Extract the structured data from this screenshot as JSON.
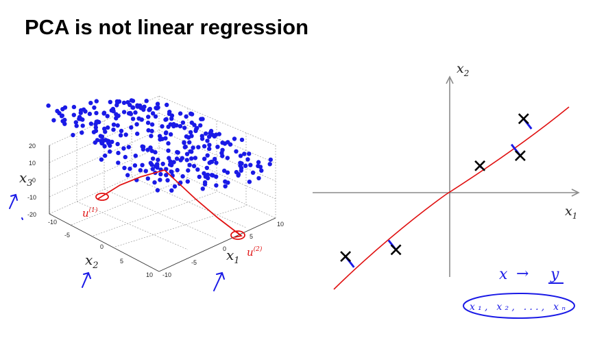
{
  "slide": {
    "title": "PCA is not linear regression"
  },
  "plot3d": {
    "z_ticks": [
      "20",
      "10",
      "0",
      "-10",
      "-20"
    ],
    "x2_ticks": [
      "-10",
      "-5",
      "0",
      "5",
      "10"
    ],
    "x1_ticks": [
      "-10",
      "-5",
      "0",
      "5",
      "10"
    ],
    "x3_label": "x",
    "x3_sub": "3",
    "x2_label": "x",
    "x2_sub": "2",
    "x1_label": "x",
    "x1_sub": "1",
    "point_color": "#1a1ae6",
    "u1_annotation": "u",
    "u1_sup": "(1)",
    "u2_annotation": "u",
    "u2_sup": "(2)"
  },
  "plot2d": {
    "x1_label": "x",
    "x1_sub": "1",
    "x2_label": "x",
    "x2_sub": "2",
    "line_color": "#e01010",
    "projection_color": "#1a1ae6",
    "points": [
      {
        "x": -3.1,
        "y": -1.9
      },
      {
        "x": -1.6,
        "y": -1.7
      },
      {
        "x": 0.9,
        "y": 0.8
      },
      {
        "x": 2.1,
        "y": 1.1
      },
      {
        "x": 2.2,
        "y": 2.2
      }
    ]
  },
  "notes": {
    "mapping_x": "x",
    "mapping_arrow": "→",
    "mapping_y": "y",
    "features": "x₁, x₂, ..., xₙ"
  },
  "colors": {
    "ink_blue": "#1a1ae6",
    "ink_red": "#e01010"
  }
}
